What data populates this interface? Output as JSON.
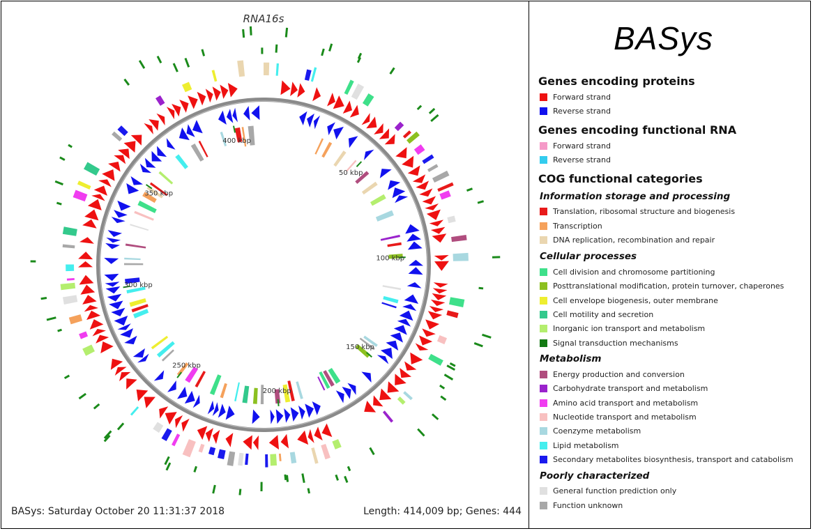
{
  "title": "RNA16s",
  "logo": "BASys",
  "footer": {
    "left": "BASys: Saturday October 20 11:31:37 2018",
    "right": "Length: 414,009 bp; Genes: 444"
  },
  "ticks": [
    "50 kbp",
    "100 kbp",
    "150 kbp",
    "200 kbp",
    "250 kbp",
    "300 kbp",
    "350 kbp",
    "400 kbp"
  ],
  "legend": {
    "proteins": {
      "title": "Genes encoding proteins",
      "items": [
        {
          "label": "Forward strand",
          "color": "#ee1111"
        },
        {
          "label": "Reverse strand",
          "color": "#1111ee"
        }
      ]
    },
    "rna": {
      "title": "Genes encoding functional RNA",
      "items": [
        {
          "label": "Forward strand",
          "color": "#f59ac8"
        },
        {
          "label": "Reverse strand",
          "color": "#33ccee"
        }
      ]
    },
    "cog": {
      "title": "COG functional categories",
      "info": {
        "title": "Information storage and processing",
        "items": [
          {
            "label": "Translation, ribosomal structure and biogenesis",
            "color": "#e81a1a"
          },
          {
            "label": "Transcription",
            "color": "#f5a15b"
          },
          {
            "label": "DNA replication, recombination and repair",
            "color": "#ead6b0"
          }
        ]
      },
      "cellular": {
        "title": "Cellular processes",
        "items": [
          {
            "label": "Cell division and chromosome partitioning",
            "color": "#3ee08a"
          },
          {
            "label": "Posttranslational modification, protein turnover, chaperones",
            "color": "#8cc020"
          },
          {
            "label": "Cell envelope biogenesis, outer membrane",
            "color": "#eeee30"
          },
          {
            "label": "Cell motility and secretion",
            "color": "#33c98c"
          },
          {
            "label": "Inorganic ion transport and metabolism",
            "color": "#b4ee6e"
          },
          {
            "label": "Signal transduction mechanisms",
            "color": "#137a13"
          }
        ]
      },
      "metabolism": {
        "title": "Metabolism",
        "items": [
          {
            "label": "Energy production and conversion",
            "color": "#b04d7e"
          },
          {
            "label": "Carbohydrate transport and metabolism",
            "color": "#9a22cc"
          },
          {
            "label": "Amino acid transport and metabolism",
            "color": "#f03cf0"
          },
          {
            "label": "Nucleotide transport and metabolism",
            "color": "#f8c0c0"
          },
          {
            "label": "Coenzyme metabolism",
            "color": "#a8d8e0"
          },
          {
            "label": "Lipid metabolism",
            "color": "#44eeee"
          },
          {
            "label": "Secondary metabolites biosynthesis, transport and catabolism",
            "color": "#1a1aee"
          }
        ]
      },
      "poor": {
        "title": "Poorly characterized",
        "items": [
          {
            "label": "General function prediction only",
            "color": "#e0e0e0"
          },
          {
            "label": "Function unknown",
            "color": "#a8a8a8"
          }
        ]
      }
    }
  }
}
